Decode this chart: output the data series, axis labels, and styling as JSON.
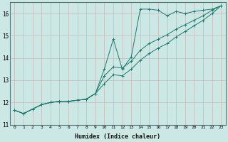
{
  "xlabel": "Humidex (Indice chaleur)",
  "background_color": "#cce8e4",
  "grid_color": "#c8b8b8",
  "line_color": "#1a7a6e",
  "xlim": [
    -0.5,
    23.5
  ],
  "ylim": [
    11.0,
    16.5
  ],
  "yticks": [
    11,
    12,
    13,
    14,
    15,
    16
  ],
  "xticks": [
    0,
    1,
    2,
    3,
    4,
    5,
    6,
    7,
    8,
    9,
    10,
    11,
    12,
    13,
    14,
    15,
    16,
    17,
    18,
    19,
    20,
    21,
    22,
    23
  ],
  "series1_x": [
    0,
    1,
    2,
    3,
    4,
    5,
    6,
    7,
    8,
    9,
    10,
    11,
    12,
    13,
    14,
    15,
    16,
    17,
    18,
    19,
    20,
    21,
    22,
    23
  ],
  "series1_y": [
    11.65,
    11.5,
    11.7,
    11.9,
    12.0,
    12.05,
    12.05,
    12.1,
    12.15,
    12.4,
    13.5,
    14.85,
    13.5,
    14.05,
    16.2,
    16.2,
    16.15,
    15.9,
    16.1,
    16.0,
    16.1,
    16.15,
    16.2,
    16.35
  ],
  "series2_x": [
    0,
    1,
    2,
    3,
    4,
    5,
    6,
    7,
    8,
    9,
    10,
    11,
    12,
    13,
    14,
    15,
    16,
    17,
    18,
    19,
    20,
    21,
    22,
    23
  ],
  "series2_y": [
    11.65,
    11.5,
    11.7,
    11.9,
    12.0,
    12.05,
    12.05,
    12.1,
    12.15,
    12.4,
    13.2,
    13.6,
    13.55,
    13.85,
    14.35,
    14.65,
    14.85,
    15.05,
    15.3,
    15.5,
    15.7,
    15.9,
    16.15,
    16.35
  ],
  "series3_x": [
    0,
    1,
    2,
    3,
    4,
    5,
    6,
    7,
    8,
    9,
    10,
    11,
    12,
    13,
    14,
    15,
    16,
    17,
    18,
    19,
    20,
    21,
    22,
    23
  ],
  "series3_y": [
    11.65,
    11.5,
    11.7,
    11.9,
    12.0,
    12.05,
    12.05,
    12.1,
    12.15,
    12.4,
    12.85,
    13.25,
    13.2,
    13.5,
    13.9,
    14.2,
    14.45,
    14.65,
    14.95,
    15.2,
    15.45,
    15.7,
    16.0,
    16.35
  ]
}
